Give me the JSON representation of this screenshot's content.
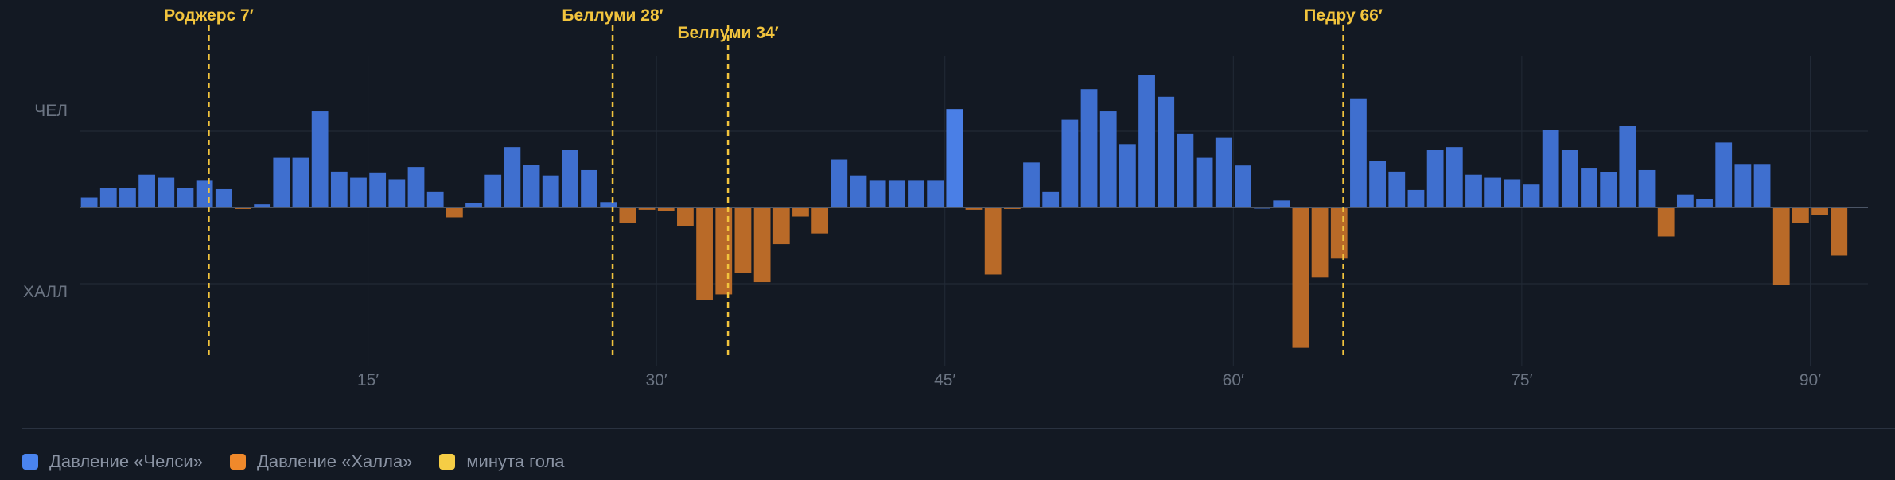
{
  "chart_data": {
    "type": "bar",
    "title": "",
    "xlabel": "",
    "ylabel": "",
    "colors": {
      "chelsea": "#3f6fcf",
      "chelsea_highlight": "#4a7fe6",
      "hull": "#b96a28",
      "goal": "#f2c43d",
      "background": "#131923",
      "grid": "#222a36",
      "axis": "#4b5566",
      "tick": "#6b7482"
    },
    "y_labels": {
      "top": "ЧЕЛ",
      "bottom": "ХАЛЛ"
    },
    "ylim": [
      -2.0,
      1.9
    ],
    "gridlines": [
      1,
      -1
    ],
    "x_range": [
      0,
      93
    ],
    "x_ticks": [
      {
        "minute": 15,
        "label": "15′"
      },
      {
        "minute": 30,
        "label": "30′"
      },
      {
        "minute": 45,
        "label": "45′"
      },
      {
        "minute": 60,
        "label": "60′"
      },
      {
        "minute": 75,
        "label": "75′"
      },
      {
        "minute": 90,
        "label": "90′"
      }
    ],
    "minutes": [
      1,
      2,
      3,
      4,
      5,
      6,
      7,
      8,
      9,
      10,
      11,
      12,
      13,
      14,
      15,
      16,
      17,
      18,
      19,
      20,
      21,
      22,
      23,
      24,
      25,
      26,
      27,
      28,
      29,
      30,
      31,
      32,
      33,
      34,
      35,
      36,
      37,
      38,
      39,
      40,
      41,
      42,
      43,
      44,
      45,
      46,
      47,
      48,
      49,
      50,
      51,
      52,
      53,
      54,
      55,
      56,
      57,
      58,
      59,
      60,
      61,
      62,
      63,
      64,
      65,
      66,
      67,
      68,
      69,
      70,
      71,
      72,
      73,
      74,
      75,
      76,
      77,
      78,
      79,
      80,
      81,
      82,
      83,
      84,
      85,
      86,
      87,
      88,
      89,
      90,
      91,
      92
    ],
    "values": [
      0.13,
      0.25,
      0.25,
      0.43,
      0.39,
      0.25,
      0.35,
      0.24,
      -0.02,
      0.04,
      0.65,
      0.65,
      1.26,
      0.47,
      0.39,
      0.45,
      0.37,
      0.53,
      0.21,
      -0.13,
      0.06,
      0.43,
      0.79,
      0.56,
      0.42,
      0.75,
      0.49,
      0.07,
      -0.2,
      -0.03,
      -0.05,
      -0.24,
      -1.21,
      -1.14,
      -0.86,
      -0.98,
      -0.48,
      -0.12,
      -0.34,
      0.63,
      0.42,
      0.35,
      0.35,
      0.35,
      0.35,
      1.29,
      -0.03,
      -0.88,
      -0.02,
      0.59,
      0.21,
      1.15,
      1.55,
      1.26,
      0.83,
      1.73,
      1.45,
      0.97,
      0.65,
      0.91,
      0.55,
      0.0,
      0.09,
      -1.84,
      -0.92,
      -0.67,
      1.43,
      0.61,
      0.47,
      0.23,
      0.75,
      0.79,
      0.43,
      0.39,
      0.37,
      0.3,
      1.02,
      0.75,
      0.51,
      0.46,
      1.07,
      0.49,
      -0.38,
      0.17,
      0.11,
      0.85,
      0.57,
      0.57,
      -1.02,
      -0.2,
      -0.1,
      -0.63
    ],
    "highlight_minute": 46,
    "goals": [
      {
        "minute": 7,
        "label": "Роджерс 7′"
      },
      {
        "minute": 28,
        "label": "Беллуми 28′"
      },
      {
        "minute": 34,
        "label": "Беллуми 34′"
      },
      {
        "minute": 66,
        "label": "Педру 66′"
      }
    ],
    "legend": [
      {
        "label": "Давление «Челси»",
        "color": "#4a84ef"
      },
      {
        "label": "Давление «Халла»",
        "color": "#f0892b"
      },
      {
        "label": "минута гола",
        "color": "#f5cd45"
      }
    ]
  }
}
